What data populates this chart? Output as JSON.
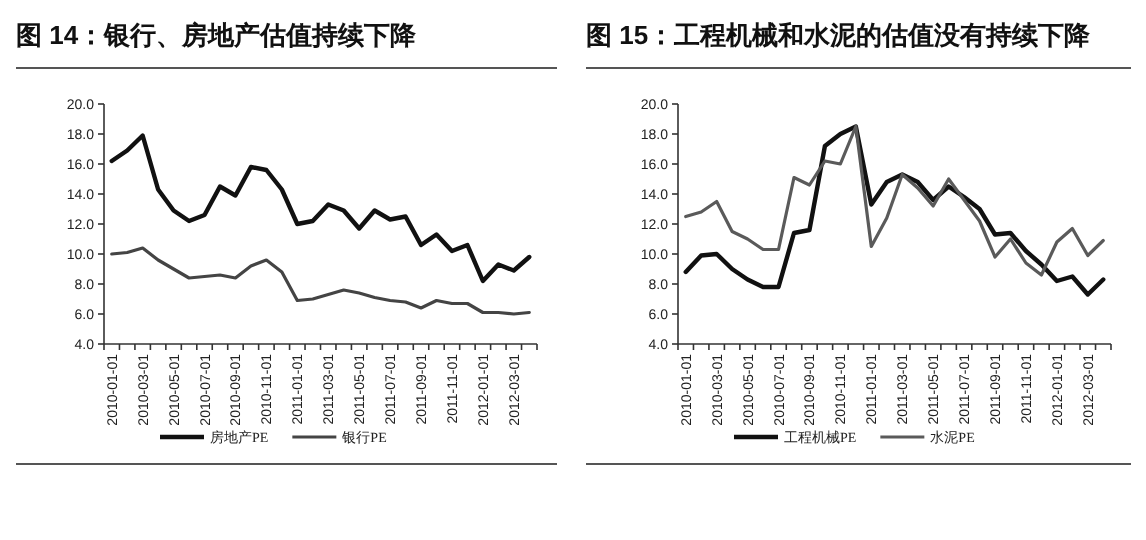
{
  "chart_data": [
    {
      "type": "line",
      "title": "图 14：银行、房地产估值持续下降",
      "categories": [
        "2010-01-01",
        null,
        "2010-03-01",
        null,
        "2010-05-01",
        null,
        "2010-07-01",
        null,
        "2010-09-01",
        null,
        "2010-11-01",
        null,
        "2011-01-01",
        null,
        "2011-03-01",
        null,
        "2011-05-01",
        null,
        "2011-07-01",
        null,
        "2011-09-01",
        null,
        "2011-11-01",
        null,
        "2012-01-01",
        null,
        "2012-03-01",
        null
      ],
      "series": [
        {
          "name": "房地产PE",
          "color": "#111111",
          "values": [
            16.2,
            16.9,
            17.9,
            14.3,
            12.9,
            12.2,
            12.6,
            14.5,
            13.9,
            15.8,
            15.6,
            14.3,
            12.0,
            12.2,
            13.3,
            12.9,
            11.7,
            12.9,
            12.3,
            12.5,
            10.6,
            11.3,
            10.2,
            10.6,
            8.2,
            9.3,
            8.9,
            9.8
          ]
        },
        {
          "name": "银行PE",
          "color": "#444444",
          "values": [
            10.0,
            10.1,
            10.4,
            9.6,
            9.0,
            8.4,
            8.5,
            8.6,
            8.4,
            9.2,
            9.6,
            8.8,
            6.9,
            7.0,
            7.3,
            7.6,
            7.4,
            7.1,
            6.9,
            6.8,
            6.4,
            6.9,
            6.7,
            6.7,
            6.1,
            6.1,
            6.0,
            6.1
          ]
        }
      ],
      "ylim": [
        4,
        20
      ],
      "yticks": [
        {
          "value": 4,
          "label": "4.0"
        },
        {
          "value": 6,
          "label": "6.0"
        },
        {
          "value": 8,
          "label": "8.0"
        },
        {
          "value": 10,
          "label": "10.0"
        },
        {
          "value": 12,
          "label": "12.0"
        },
        {
          "value": 14,
          "label": "14.0"
        },
        {
          "value": 16,
          "label": "16.0"
        },
        {
          "value": 18,
          "label": "18.0"
        },
        {
          "value": 20,
          "label": "20.0"
        }
      ],
      "grid": false,
      "legend": "bottom",
      "marker": "none",
      "line_style": "solid"
    },
    {
      "type": "line",
      "title": "图 15：工程机械和水泥的估值没有持续下降",
      "categories": [
        "2010-01-01",
        null,
        "2010-03-01",
        null,
        "2010-05-01",
        null,
        "2010-07-01",
        null,
        "2010-09-01",
        null,
        "2010-11-01",
        null,
        "2011-01-01",
        null,
        "2011-03-01",
        null,
        "2011-05-01",
        null,
        "2011-07-01",
        null,
        "2011-09-01",
        null,
        "2011-11-01",
        null,
        "2012-01-01",
        null,
        "2012-03-01",
        null
      ],
      "series": [
        {
          "name": "工程机械PE",
          "color": "#111111",
          "values": [
            8.8,
            9.9,
            10.0,
            9.0,
            8.3,
            7.8,
            7.8,
            11.4,
            11.6,
            17.2,
            18.0,
            18.5,
            13.3,
            14.8,
            15.3,
            14.8,
            13.6,
            14.5,
            13.8,
            13.0,
            11.3,
            11.4,
            10.2,
            9.3,
            8.2,
            8.5,
            7.3,
            8.3
          ]
        },
        {
          "name": "水泥PE",
          "color": "#5a5a5a",
          "values": [
            12.5,
            12.8,
            13.5,
            11.5,
            11.0,
            10.3,
            10.3,
            15.1,
            14.6,
            16.2,
            16.0,
            18.5,
            10.5,
            12.4,
            15.3,
            14.4,
            13.2,
            15.0,
            13.6,
            12.2,
            9.8,
            11.0,
            9.4,
            8.6,
            10.8,
            11.7,
            9.9,
            10.9
          ]
        }
      ],
      "ylim": [
        4,
        20
      ],
      "yticks": [
        {
          "value": 4,
          "label": "4.0"
        },
        {
          "value": 6,
          "label": "6.0"
        },
        {
          "value": 8,
          "label": "8.0"
        },
        {
          "value": 10,
          "label": "10.0"
        },
        {
          "value": 12,
          "label": "12.0"
        },
        {
          "value": 14,
          "label": "14.0"
        },
        {
          "value": 16,
          "label": "16.0"
        },
        {
          "value": 18,
          "label": "18.0"
        },
        {
          "value": 20,
          "label": "20.0"
        }
      ],
      "grid": false,
      "legend": "bottom",
      "marker": "none",
      "line_style": "solid"
    }
  ]
}
